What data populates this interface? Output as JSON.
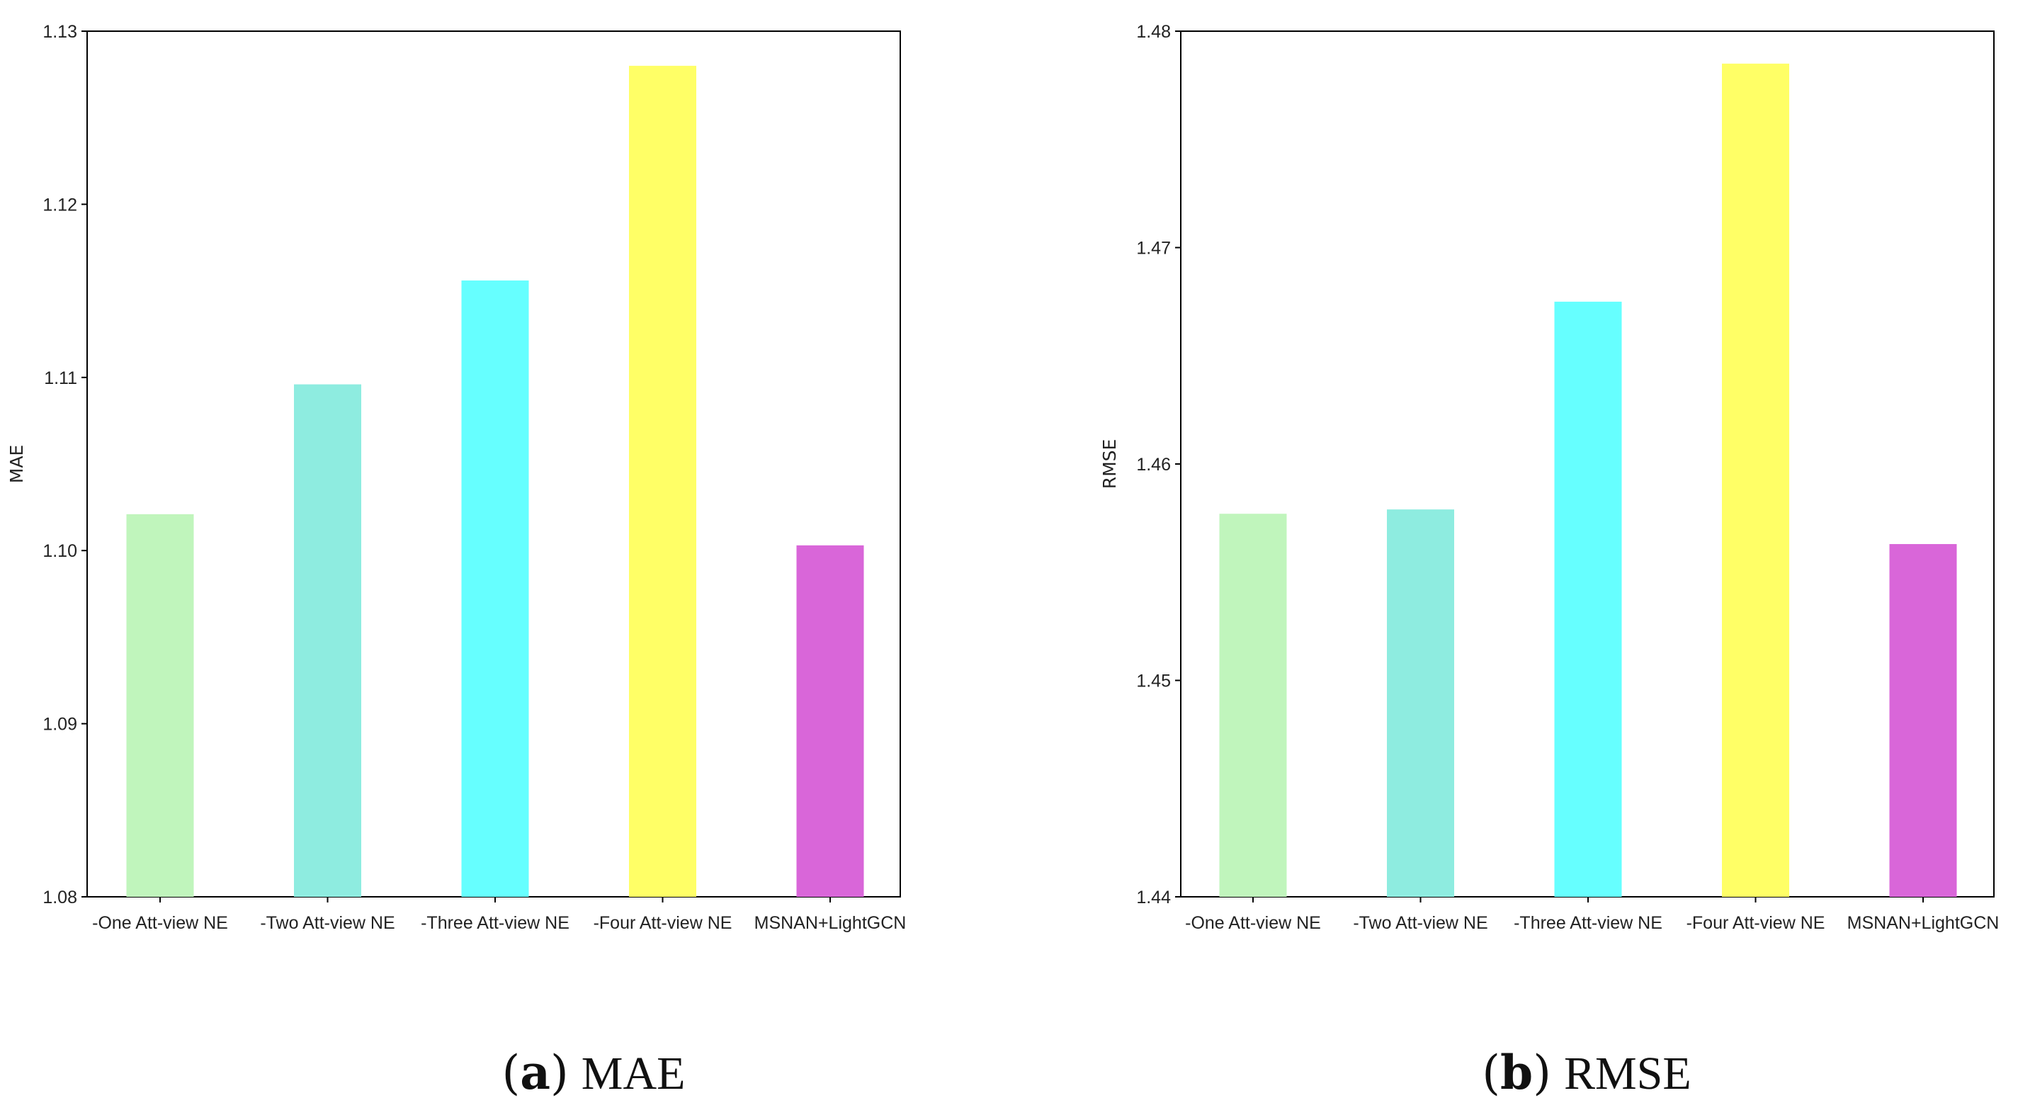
{
  "chart_data": [
    {
      "type": "bar",
      "id": "a",
      "caption_tag": "a",
      "caption_text": "MAE",
      "ylabel": "MAE",
      "xlabel": "",
      "categories": [
        "-One Att-view NE",
        "-Two Att-view NE",
        "-Three Att-view NE",
        "-Four Att-view NE",
        "MSNAN+LightGCN"
      ],
      "values": [
        1.1021,
        1.1096,
        1.1156,
        1.128,
        1.1003
      ],
      "colors": [
        "#c0f5bc",
        "#8eece0",
        "#66ffff",
        "#ffff66",
        "#d966d9"
      ],
      "ylim": [
        1.08,
        1.13
      ],
      "yticks": [
        1.08,
        1.09,
        1.1,
        1.11,
        1.12,
        1.13
      ],
      "ytick_labels": [
        "1.08",
        "1.09",
        "1.10",
        "1.11",
        "1.12",
        "1.13"
      ],
      "grid": false,
      "legend": false
    },
    {
      "type": "bar",
      "id": "b",
      "caption_tag": "b",
      "caption_text": "RMSE",
      "ylabel": "RMSE",
      "xlabel": "",
      "categories": [
        "-One Att-view NE",
        "-Two Att-view NE",
        "-Three Att-view NE",
        "-Four Att-view NE",
        "MSNAN+LightGCN"
      ],
      "values": [
        1.4577,
        1.4579,
        1.4675,
        1.4785,
        1.4563
      ],
      "colors": [
        "#c0f5bc",
        "#8eece0",
        "#66ffff",
        "#ffff66",
        "#d966d9"
      ],
      "ylim": [
        1.44,
        1.48
      ],
      "yticks": [
        1.44,
        1.45,
        1.46,
        1.47,
        1.48
      ],
      "ytick_labels": [
        "1.44",
        "1.45",
        "1.46",
        "1.47",
        "1.48"
      ],
      "grid": false,
      "legend": false
    }
  ]
}
